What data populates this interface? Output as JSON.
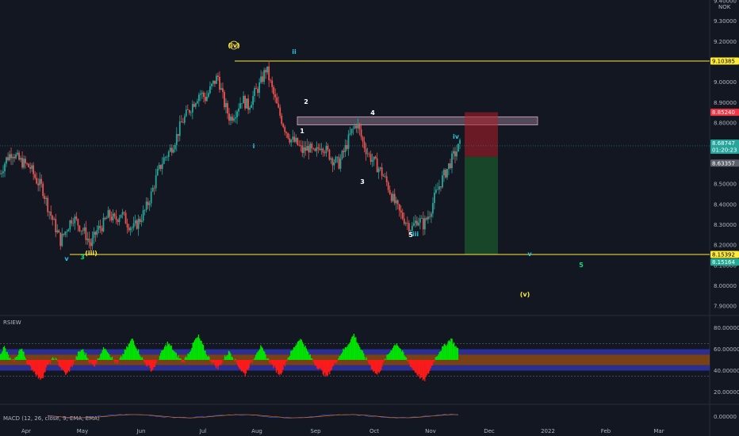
{
  "chart_data": [
    {
      "type": "candlestick",
      "ylim": [
        7.85,
        9.45
      ],
      "y_ticks": [
        "9.40000",
        "9.30000",
        "9.20000",
        "9.10000",
        "9.00000",
        "8.90000",
        "8.80000",
        "8.70000",
        "8.60000",
        "8.50000",
        "8.40000",
        "8.30000",
        "8.20000",
        "8.10000",
        "8.00000",
        "7.90000"
      ],
      "currency_label": "NOK",
      "x_ticks": [
        "Apr",
        "May",
        "Jun",
        "Jul",
        "Aug",
        "Sep",
        "Oct",
        "Nov",
        "Dec",
        "2022",
        "Feb",
        "Mar"
      ],
      "close_path": [
        [
          0,
          8.55
        ],
        [
          4,
          8.62
        ],
        [
          8,
          8.66
        ],
        [
          12,
          8.62
        ],
        [
          16,
          8.6
        ],
        [
          20,
          8.58
        ],
        [
          24,
          8.52
        ],
        [
          28,
          8.48
        ],
        [
          32,
          8.38
        ],
        [
          36,
          8.3
        ],
        [
          40,
          8.22
        ],
        [
          44,
          8.28
        ],
        [
          48,
          8.34
        ],
        [
          52,
          8.3
        ],
        [
          56,
          8.26
        ],
        [
          60,
          8.2
        ],
        [
          64,
          8.27
        ],
        [
          68,
          8.3
        ],
        [
          72,
          8.35
        ],
        [
          76,
          8.32
        ],
        [
          80,
          8.36
        ],
        [
          84,
          8.31
        ],
        [
          88,
          8.28
        ],
        [
          92,
          8.32
        ],
        [
          96,
          8.37
        ],
        [
          100,
          8.45
        ],
        [
          104,
          8.55
        ],
        [
          108,
          8.62
        ],
        [
          112,
          8.66
        ],
        [
          116,
          8.72
        ],
        [
          120,
          8.8
        ],
        [
          124,
          8.85
        ],
        [
          128,
          8.9
        ],
        [
          132,
          8.95
        ],
        [
          136,
          8.92
        ],
        [
          140,
          8.98
        ],
        [
          144,
          9.03
        ],
        [
          148,
          8.9
        ],
        [
          152,
          8.82
        ],
        [
          156,
          8.86
        ],
        [
          160,
          8.92
        ],
        [
          164,
          8.88
        ],
        [
          168,
          8.94
        ],
        [
          172,
          8.99
        ],
        [
          176,
          9.07
        ],
        [
          180,
          8.96
        ],
        [
          184,
          8.86
        ],
        [
          188,
          8.78
        ],
        [
          192,
          8.72
        ],
        [
          196,
          8.7
        ],
        [
          200,
          8.66
        ],
        [
          204,
          8.68
        ],
        [
          208,
          8.64
        ],
        [
          212,
          8.7
        ],
        [
          216,
          8.66
        ],
        [
          220,
          8.62
        ],
        [
          224,
          8.6
        ],
        [
          228,
          8.67
        ],
        [
          232,
          8.75
        ],
        [
          236,
          8.8
        ],
        [
          240,
          8.7
        ],
        [
          244,
          8.64
        ],
        [
          248,
          8.6
        ],
        [
          252,
          8.56
        ],
        [
          256,
          8.5
        ],
        [
          260,
          8.42
        ],
        [
          264,
          8.36
        ],
        [
          268,
          8.32
        ],
        [
          272,
          8.28
        ],
        [
          276,
          8.33
        ],
        [
          280,
          8.3
        ],
        [
          284,
          8.36
        ],
        [
          288,
          8.45
        ],
        [
          292,
          8.52
        ],
        [
          296,
          8.58
        ],
        [
          300,
          8.64
        ],
        [
          304,
          8.69
        ]
      ],
      "levels": [
        {
          "price": 9.10385,
          "label": "9.10385",
          "color": "#ffeb3b",
          "text_color": "#000000"
        },
        {
          "price": 8.8524,
          "label": "8.85240",
          "color": "#f23645",
          "text_color": "#ffffff"
        },
        {
          "price": 8.68747,
          "label": "8.68747",
          "color": "#26a69a",
          "text_color": "#ffffff",
          "countdown": "01:20:23"
        },
        {
          "price": 8.63357,
          "label": "8.63357",
          "color": "#5d606b",
          "text_color": "#ffffff"
        },
        {
          "price": 8.15392,
          "label": "8.15392",
          "color": "#ffeb3b",
          "text_color": "#000000"
        },
        {
          "price": 8.15164,
          "label": "8.15164",
          "color": "#22ab94",
          "text_color": "#ffffff"
        }
      ],
      "wave_labels": [
        {
          "text": "(iv)",
          "color": "#ffeb3b"
        },
        {
          "text": "ii",
          "color": "#26c6da"
        },
        {
          "text": "2",
          "color": "#ffffff"
        },
        {
          "text": "4",
          "color": "#ffffff"
        },
        {
          "text": "1",
          "color": "#ffffff"
        },
        {
          "text": "i",
          "color": "#26c6da"
        },
        {
          "text": "iv",
          "color": "#26c6da"
        },
        {
          "text": "3",
          "color": "#ffffff"
        },
        {
          "text": "5",
          "color": "#ffffff"
        },
        {
          "text": "iii",
          "color": "#26c6da"
        },
        {
          "text": "v",
          "color": "#26c6da"
        },
        {
          "text": "3",
          "color": "#00e676"
        },
        {
          "text": "(iii)",
          "color": "#ffeb3b"
        },
        {
          "text": "v",
          "color": "#26c6da"
        },
        {
          "text": "5",
          "color": "#00e676"
        },
        {
          "text": "(v)",
          "color": "#ffeb3b"
        }
      ],
      "trade": {
        "entry": 8.63357,
        "stop": 8.8524,
        "target": 8.15392
      }
    },
    {
      "type": "area",
      "title": "RSIEW",
      "ylim": [
        10,
        90
      ],
      "y_ticks": [
        "80.00000",
        "60.00000",
        "40.00000",
        "20.00000"
      ],
      "bands": [
        {
          "from": 55,
          "to": 60,
          "color": "#3034a8"
        },
        {
          "from": 45,
          "to": 55,
          "color": "#8b4a14"
        },
        {
          "from": 40,
          "to": 45,
          "color": "#3034a8"
        }
      ],
      "midline": 50,
      "values": [
        57,
        62,
        54,
        48,
        52,
        60,
        58,
        45,
        42,
        38,
        32,
        35,
        44,
        49,
        52,
        46,
        40,
        36,
        42,
        48,
        56,
        60,
        55,
        48,
        44,
        50,
        58,
        62,
        56,
        50,
        46,
        52,
        58,
        64,
        70,
        62,
        55,
        48,
        44,
        40,
        46,
        54,
        60,
        66,
        62,
        56,
        52,
        48,
        54,
        60,
        68,
        72,
        64,
        56,
        50,
        46,
        42,
        48,
        54,
        58,
        52,
        46,
        40,
        36,
        44,
        50,
        58,
        62,
        56,
        50,
        45,
        40,
        36,
        44,
        52,
        58,
        64,
        70,
        66,
        58,
        52,
        46,
        42,
        38,
        34,
        40,
        46,
        52,
        58,
        62,
        68,
        74,
        66,
        58,
        52,
        46,
        40,
        36,
        42,
        50,
        56,
        62,
        66,
        60,
        54,
        48,
        42,
        38,
        34,
        30,
        36,
        44,
        52,
        58,
        62,
        66,
        70,
        64,
        58
      ]
    },
    {
      "type": "line",
      "title": "MACD (12, 26, close, 9, EMA, EMA)",
      "ylim": [
        -0.02,
        0.02
      ],
      "y_ticks": [
        "0.00000"
      ]
    }
  ]
}
